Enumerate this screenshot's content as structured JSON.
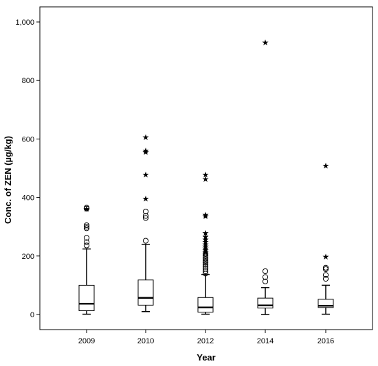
{
  "chart_data": {
    "type": "boxplot",
    "xlabel": "Year",
    "ylabel": "Conc. of ZEN (µg/kg)",
    "ylim": [
      0,
      1000
    ],
    "yticks": [
      0,
      200,
      400,
      600,
      800,
      1000
    ],
    "ytick_labels": [
      "0",
      "200",
      "400",
      "600",
      "800",
      "1,000"
    ],
    "grid": false,
    "categories": [
      "2009",
      "2010",
      "2012",
      "2014",
      "2016"
    ],
    "boxes": [
      {
        "category": "2009",
        "whisker_low": 1,
        "q1": 13,
        "median": 37,
        "q3": 100,
        "whisker_high": 224,
        "outliers": [
          236,
          247,
          262,
          295,
          300,
          305,
          362,
          365
        ],
        "extremes": [
          363
        ]
      },
      {
        "category": "2010",
        "whisker_low": 10,
        "q1": 32,
        "median": 57,
        "q3": 118,
        "whisker_high": 240,
        "outliers": [
          252,
          330,
          337,
          352
        ],
        "extremes": [
          398,
          480,
          557,
          562,
          608
        ]
      },
      {
        "category": "2012",
        "whisker_low": 1,
        "q1": 8,
        "median": 24,
        "q3": 58,
        "whisker_high": 137,
        "outliers": [
          140,
          148,
          156,
          163,
          170,
          177,
          183,
          190,
          196,
          202,
          208
        ],
        "extremes": [
          215,
          222,
          228,
          235,
          242,
          250,
          258,
          268,
          280,
          338,
          343,
          465,
          480
        ]
      },
      {
        "category": "2014",
        "whisker_low": 0,
        "q1": 22,
        "median": 31,
        "q3": 56,
        "whisker_high": 92,
        "outliers": [
          113,
          128,
          148
        ],
        "extremes": [
          932
        ]
      },
      {
        "category": "2016",
        "whisker_low": 1,
        "q1": 24,
        "median": 30,
        "q3": 52,
        "whisker_high": 100,
        "outliers": [
          122,
          135,
          155,
          160
        ],
        "extremes": [
          200,
          510
        ]
      }
    ]
  }
}
